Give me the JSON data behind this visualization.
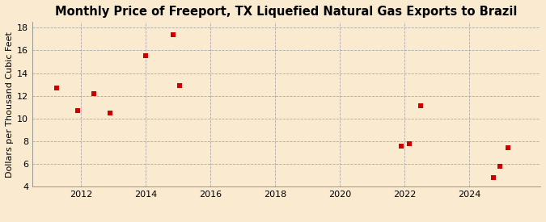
{
  "title": "Monthly Price of Freeport, TX Liquefied Natural Gas Exports to Brazil",
  "ylabel": "Dollars per Thousand Cubic Feet",
  "background_color": "#faebd0",
  "plot_background": "#fdf8f0",
  "marker_color": "#cc0000",
  "xlim": [
    2010.5,
    2026.2
  ],
  "ylim": [
    4,
    18.5
  ],
  "yticks": [
    4,
    6,
    8,
    10,
    12,
    14,
    16,
    18
  ],
  "xticks": [
    2012,
    2014,
    2016,
    2018,
    2020,
    2022,
    2024
  ],
  "data_x": [
    2011.25,
    2011.9,
    2012.4,
    2012.9,
    2014.0,
    2014.85,
    2015.05,
    2021.9,
    2022.15,
    2022.5,
    2024.75,
    2024.95,
    2025.2
  ],
  "data_y": [
    12.7,
    10.7,
    12.2,
    10.5,
    15.5,
    17.4,
    12.9,
    7.6,
    7.8,
    11.1,
    4.8,
    5.8,
    7.4
  ],
  "title_fontsize": 10.5,
  "label_fontsize": 8,
  "tick_fontsize": 8,
  "source_fontsize": 7,
  "marker_size": 4
}
